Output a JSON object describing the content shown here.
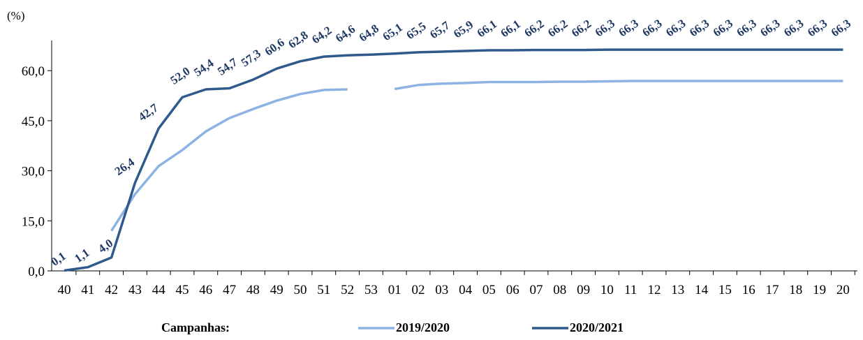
{
  "chart_data": {
    "type": "line",
    "ylabel": "(%)",
    "xlabel": "",
    "ylim": [
      0,
      66.3
    ],
    "yticks": [
      "0,0",
      "15,0",
      "30,0",
      "45,0",
      "60,0"
    ],
    "ytick_values": [
      0,
      15,
      30,
      45,
      60
    ],
    "categories": [
      "40",
      "41",
      "42",
      "43",
      "44",
      "45",
      "46",
      "47",
      "48",
      "49",
      "50",
      "51",
      "52",
      "53",
      "01",
      "02",
      "03",
      "04",
      "05",
      "06",
      "07",
      "08",
      "09",
      "10",
      "11",
      "12",
      "13",
      "14",
      "15",
      "16",
      "17",
      "18",
      "19",
      "20"
    ],
    "series": [
      {
        "name": "2019/2020",
        "color": "#8db3e2",
        "values": [
          null,
          null,
          12.0,
          23.0,
          31.4,
          36.2,
          41.8,
          45.8,
          48.5,
          51.0,
          53.0,
          54.2,
          54.4,
          null,
          54.5,
          55.7,
          56.1,
          56.3,
          56.6,
          56.6,
          56.6,
          56.7,
          56.7,
          56.8,
          56.9,
          56.9,
          56.9,
          56.9,
          56.9,
          56.9,
          56.9,
          56.9,
          56.9,
          56.9
        ]
      },
      {
        "name": "2020/2021",
        "color": "#305a8c",
        "values": [
          0.1,
          1.1,
          4.0,
          26.4,
          42.7,
          52.0,
          54.4,
          54.7,
          57.3,
          60.6,
          62.8,
          64.2,
          64.6,
          64.8,
          65.1,
          65.5,
          65.7,
          65.9,
          66.1,
          66.1,
          66.2,
          66.2,
          66.2,
          66.3,
          66.3,
          66.3,
          66.3,
          66.3,
          66.3,
          66.3,
          66.3,
          66.3,
          66.3,
          66.3
        ],
        "labels": [
          "0,1",
          "1,1",
          "4,0",
          "26,4",
          "42,7",
          "52,0",
          "54,4",
          "54,7",
          "57,3",
          "60,6",
          "62,8",
          "64,2",
          "64,6",
          "64,8",
          "65,1",
          "65,5",
          "65,7",
          "65,9",
          "66,1",
          "66,1",
          "66,2",
          "66,2",
          "66,2",
          "66,3",
          "66,3",
          "66,3",
          "66,3",
          "66,3",
          "66,3",
          "66,3",
          "66,3",
          "66,3",
          "66,3",
          "66,3"
        ]
      }
    ],
    "legend": {
      "title": "Campanhas:",
      "placement": "bottom"
    }
  }
}
